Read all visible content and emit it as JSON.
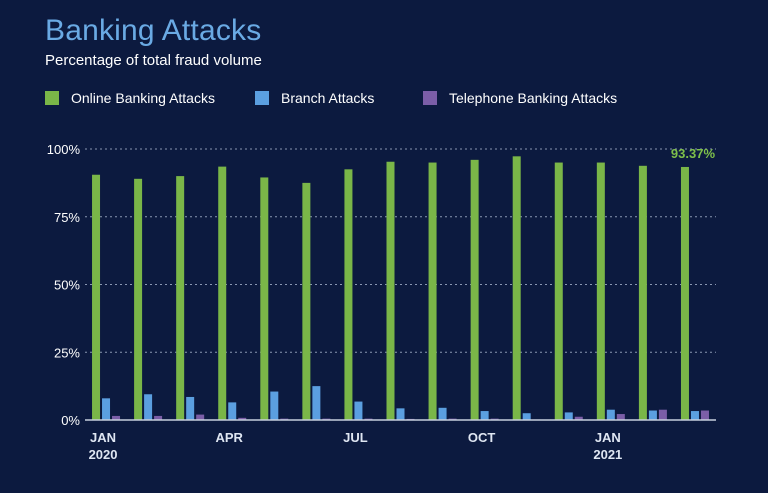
{
  "chart_data": {
    "type": "bar",
    "title": "Banking Attacks",
    "subtitle": "Percentage of total fraud volume",
    "ylim": [
      0,
      100
    ],
    "yticks": [
      0,
      25,
      50,
      75,
      100
    ],
    "ytick_labels": [
      "0%",
      "25%",
      "50%",
      "75%",
      "100%"
    ],
    "grid": true,
    "legend_position": "top-left",
    "categories": [
      "Jan 2020",
      "Feb 2020",
      "Mar 2020",
      "Apr 2020",
      "May 2020",
      "Jun 2020",
      "Jul 2020",
      "Aug 2020",
      "Sep 2020",
      "Oct 2020",
      "Nov 2020",
      "Dec 2020",
      "Jan 2021",
      "Feb 2021",
      "Mar 2021"
    ],
    "x_tick_labels": [
      {
        "index": 0,
        "line1": "JAN",
        "line2": "2020"
      },
      {
        "index": 3,
        "line1": "APR",
        "line2": ""
      },
      {
        "index": 6,
        "line1": "JUL",
        "line2": ""
      },
      {
        "index": 9,
        "line1": "OCT",
        "line2": ""
      },
      {
        "index": 12,
        "line1": "JAN",
        "line2": "2021"
      }
    ],
    "series": [
      {
        "name": "Online Banking Attacks",
        "color": "#7ab648",
        "values": [
          90.5,
          89,
          90,
          93.5,
          89.5,
          87.5,
          92.5,
          95.3,
          95,
          96,
          97.3,
          95,
          95,
          93.8,
          93.37
        ]
      },
      {
        "name": "Branch Attacks",
        "color": "#5b9fe0",
        "values": [
          8,
          9.5,
          8.5,
          6.5,
          10.5,
          12.5,
          6.8,
          4.3,
          4.5,
          3.3,
          2.5,
          2.8,
          3.8,
          3.5,
          3.3
        ]
      },
      {
        "name": "Telephone Banking Attacks",
        "color": "#7b5ea7",
        "values": [
          1.5,
          1.5,
          2,
          0.8,
          0.5,
          0.5,
          0.5,
          0.4,
          0.5,
          0.5,
          0.2,
          1.2,
          2.2,
          3.8,
          3.5
        ]
      }
    ],
    "annotations": [
      {
        "series": 0,
        "index": 14,
        "text": "93.37%"
      }
    ]
  }
}
